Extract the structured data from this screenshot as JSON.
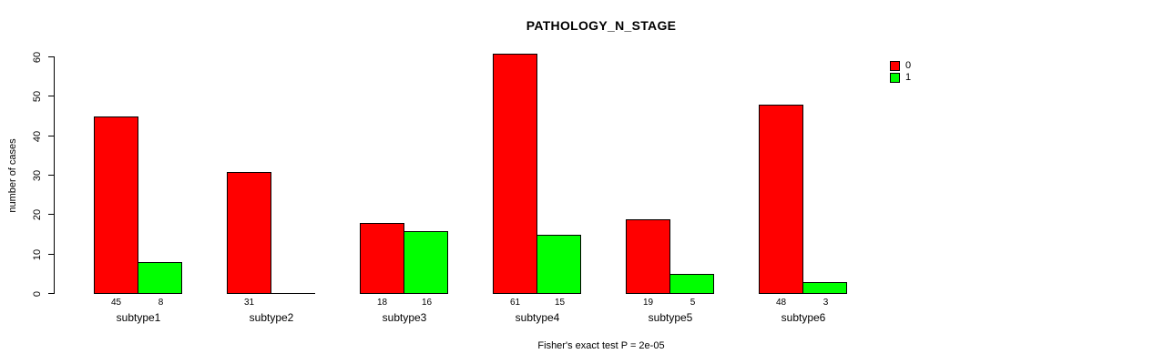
{
  "chart_data": {
    "type": "bar",
    "title": "PATHOLOGY_N_STAGE",
    "xlabel": "",
    "ylabel": "number of cases",
    "annotation": "Fisher's exact test P = 2e-05",
    "categories": [
      "subtype1",
      "subtype2",
      "subtype3",
      "subtype4",
      "subtype5",
      "subtype6"
    ],
    "series": [
      {
        "name": "0",
        "color": "#FF0000",
        "values": [
          45,
          31,
          18,
          61,
          19,
          48
        ]
      },
      {
        "name": "1",
        "color": "#00FF00",
        "values": [
          8,
          0,
          16,
          15,
          5,
          3
        ]
      }
    ],
    "bar_value_labels": [
      [
        "45",
        "8"
      ],
      [
        "31",
        ""
      ],
      [
        "18",
        "16"
      ],
      [
        "61",
        "15"
      ],
      [
        "19",
        "5"
      ],
      [
        "48",
        "3"
      ]
    ],
    "ylim": [
      0,
      60
    ],
    "yticks": [
      0,
      10,
      20,
      30,
      40,
      50,
      60
    ],
    "grid": false,
    "legend_position": "top-right",
    "legend": [
      {
        "label": "0",
        "color": "#FF0000"
      },
      {
        "label": "1",
        "color": "#00FF00"
      }
    ]
  },
  "colors": {
    "background": "#FFFFFF",
    "axis": "#000000",
    "series0": "#FF0000",
    "series1": "#00FF00"
  }
}
